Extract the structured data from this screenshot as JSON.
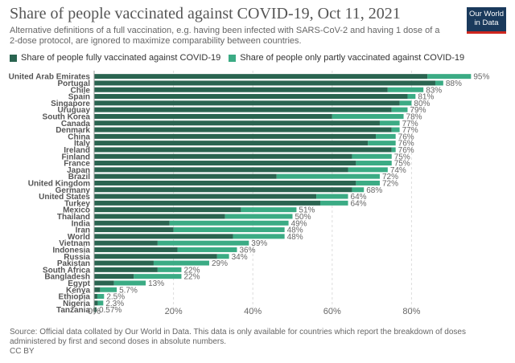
{
  "header": {
    "title": "Share of people vaccinated against COVID-19, Oct 11, 2021",
    "subtitle": "Alternative definitions of a full vaccination, e.g. having been infected with SARS-CoV-2 and having 1 dose of a 2-dose protocol, are ignored to maximize comparability between countries.",
    "logo_line1": "Our World",
    "logo_line2": "in Data"
  },
  "colors": {
    "full": "#2a6450",
    "partial": "#3bab84",
    "logo_bg": "#1a3a5c",
    "logo_accent": "#ce261e"
  },
  "chart_data": {
    "type": "bar",
    "orientation": "horizontal",
    "stacked": true,
    "categories": [
      "United Arab Emirates",
      "Portugal",
      "Chile",
      "Spain",
      "Singapore",
      "Uruguay",
      "South Korea",
      "Canada",
      "Denmark",
      "China",
      "Italy",
      "Ireland",
      "Finland",
      "France",
      "Japan",
      "Brazil",
      "United Kingdom",
      "Germany",
      "United States",
      "Turkey",
      "Mexico",
      "Thailand",
      "India",
      "Iran",
      "World",
      "Vietnam",
      "Indonesia",
      "Russia",
      "Pakistan",
      "South Africa",
      "Bangladesh",
      "Egypt",
      "Kenya",
      "Ethiopia",
      "Nigeria",
      "Tanzania"
    ],
    "series": [
      {
        "name": "Share of people fully vaccinated against COVID-19",
        "values": [
          84,
          86,
          74,
          79,
          77,
          75,
          60,
          72,
          75,
          71,
          69,
          75,
          65,
          66,
          64,
          46,
          66,
          65,
          56,
          57,
          37,
          33,
          19,
          20,
          35,
          16,
          21,
          31,
          15,
          16,
          10,
          5,
          1.5,
          0.8,
          0.9,
          0.6
        ]
      },
      {
        "name": "Share of people only partly vaccinated against COVID-19",
        "values": [
          11,
          2,
          9,
          2,
          3,
          4,
          18,
          5,
          2,
          5,
          7,
          1,
          10,
          9,
          10,
          26,
          6,
          3,
          8,
          7,
          14,
          17,
          30,
          28,
          13,
          23,
          15,
          3,
          14,
          6,
          12,
          8,
          4.2,
          1.7,
          1.4,
          0
        ]
      }
    ],
    "totals": [
      "95%",
      "88%",
      "83%",
      "81%",
      "80%",
      "79%",
      "78%",
      "77%",
      "77%",
      "76%",
      "76%",
      "76%",
      "75%",
      "75%",
      "74%",
      "72%",
      "72%",
      "68%",
      "64%",
      "64%",
      "51%",
      "50%",
      "49%",
      "48%",
      "48%",
      "39%",
      "36%",
      "34%",
      "29%",
      "22%",
      "22%",
      "13%",
      "5.7%",
      "2.5%",
      "2.3%",
      "0.57%"
    ],
    "xlim": [
      0,
      100
    ],
    "ticks": [
      0,
      20,
      40,
      60,
      80
    ],
    "tick_labels": [
      "0%",
      "20%",
      "40%",
      "60%",
      "80%"
    ],
    "grid": true,
    "legend": "top-left"
  },
  "footer": {
    "source": "Source: Official data collated by Our World in Data. This data is only available for countries which report the breakdown of doses administered by first and second doses in absolute numbers.",
    "license": "CC BY"
  }
}
